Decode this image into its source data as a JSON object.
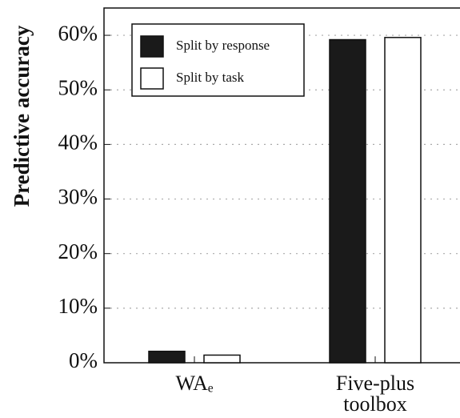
{
  "chart_data": {
    "type": "bar",
    "y_label": "Predictive accuracy",
    "categories": [
      "WAₑ",
      "Five-plus toolbox"
    ],
    "series": [
      {
        "name": "Split by response",
        "color": "#1a1a1a",
        "values": [
          2.1,
          59.2
        ]
      },
      {
        "name": "Split by task",
        "color": "#ffffff",
        "values": [
          1.4,
          59.6
        ]
      }
    ],
    "ylim": [
      0,
      65
    ],
    "yticks": [
      {
        "value": 0,
        "label": "0%"
      },
      {
        "value": 10,
        "label": "10%"
      },
      {
        "value": 20,
        "label": "20%"
      },
      {
        "value": 30,
        "label": "30%"
      },
      {
        "value": 40,
        "label": "40%"
      },
      {
        "value": 50,
        "label": "50%"
      },
      {
        "value": 60,
        "label": "60%"
      }
    ],
    "grid": true,
    "legend": "upper left"
  }
}
